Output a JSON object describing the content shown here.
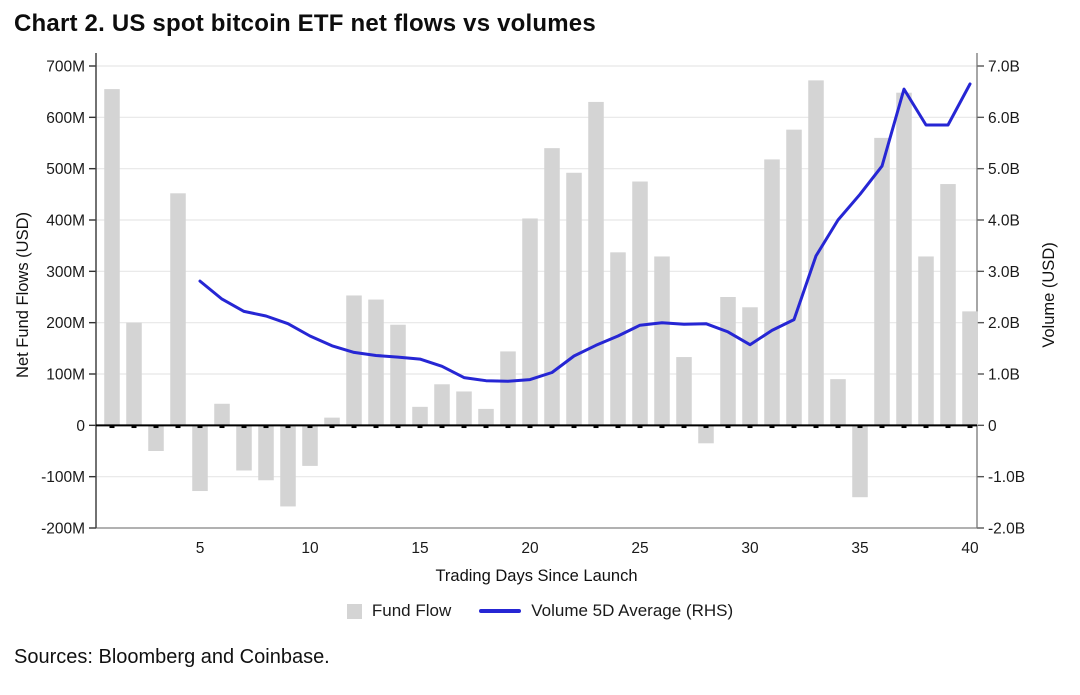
{
  "page": {
    "title": "Chart 2. US spot bitcoin ETF net flows vs volumes",
    "sources": "Sources: Bloomberg and Coinbase."
  },
  "legend": {
    "fund_flow_label": "Fund Flow",
    "volume_label": "Volume 5D Average (RHS)"
  },
  "colors": {
    "bar": "#d4d4d4",
    "line": "#2626d4",
    "grid": "#e7e7e7",
    "zero_line": "#000000",
    "bottom_spine": "#999999",
    "side_spine": "#444444",
    "axis_text": "#1a1a1a"
  },
  "chart_data": {
    "type": "bar+line",
    "title": "Chart 2. US spot bitcoin ETF net flows vs volumes",
    "xlabel": "Trading Days Since Launch",
    "ylabel_left": "Net Fund Flows (USD)",
    "ylabel_right": "Volume (USD)",
    "grid": "horizontal",
    "legend_position": "bottom",
    "x_range": [
      1,
      40
    ],
    "x_ticks": [
      5,
      10,
      15,
      20,
      25,
      30,
      35,
      40
    ],
    "y_left": {
      "unit": "USD millions",
      "ticks": [
        700,
        600,
        500,
        400,
        300,
        200,
        100,
        0,
        -100,
        -200
      ],
      "tick_labels": [
        "700M",
        "600M",
        "500M",
        "400M",
        "300M",
        "200M",
        "100M",
        "0",
        "-100M",
        "-200M"
      ]
    },
    "y_right": {
      "unit": "USD billions",
      "ticks": [
        7,
        6,
        5,
        4,
        3,
        2,
        1,
        0,
        -1,
        -2
      ],
      "tick_labels": [
        "7.0B",
        "6.0B",
        "5.0B",
        "4.0B",
        "3.0B",
        "2.0B",
        "1.0B",
        "0",
        "-1.0B",
        "-2.0B"
      ]
    },
    "series": [
      {
        "name": "Fund Flow",
        "type": "bar",
        "axis": "left",
        "color": "#d4d4d4",
        "x": [
          1,
          2,
          3,
          4,
          5,
          6,
          7,
          8,
          9,
          10,
          11,
          12,
          13,
          14,
          15,
          16,
          17,
          18,
          19,
          20,
          21,
          22,
          23,
          24,
          25,
          26,
          27,
          28,
          29,
          30,
          31,
          32,
          33,
          34,
          35,
          36,
          37,
          38,
          39,
          40
        ],
        "values_musd": [
          655,
          200,
          -50,
          452,
          -128,
          42,
          -88,
          -107,
          -158,
          -79,
          15,
          253,
          245,
          196,
          36,
          80,
          66,
          32,
          144,
          403,
          540,
          492,
          630,
          337,
          475,
          329,
          133,
          -35,
          250,
          230,
          518,
          576,
          672,
          90,
          -140,
          560,
          648,
          329,
          470,
          222
        ]
      },
      {
        "name": "Volume 5D Average (RHS)",
        "type": "line",
        "axis": "right",
        "color": "#2626d4",
        "x": [
          5,
          6,
          7,
          8,
          9,
          10,
          11,
          12,
          13,
          14,
          15,
          16,
          17,
          18,
          19,
          20,
          21,
          22,
          23,
          24,
          25,
          26,
          27,
          28,
          29,
          30,
          31,
          32,
          33,
          34,
          35,
          36,
          37,
          38,
          39,
          40
        ],
        "values_busd": [
          2.81,
          2.46,
          2.22,
          2.13,
          1.98,
          1.74,
          1.55,
          1.42,
          1.36,
          1.33,
          1.29,
          1.15,
          0.93,
          0.87,
          0.86,
          0.89,
          1.03,
          1.35,
          1.56,
          1.74,
          1.95,
          2.0,
          1.97,
          1.98,
          1.82,
          1.57,
          1.85,
          2.06,
          3.3,
          4.0,
          4.5,
          5.05,
          6.55,
          5.85,
          5.85,
          6.65
        ]
      }
    ]
  }
}
